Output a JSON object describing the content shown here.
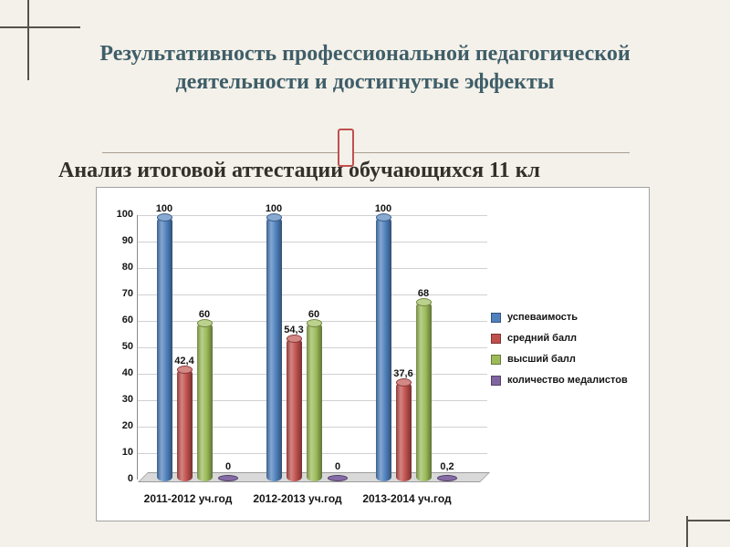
{
  "slide": {
    "title": "Результативность профессиональной педагогической деятельности и достигнутые эффекты",
    "subtitle": "Анализ итоговой аттестации обучающихся 11 кл",
    "title_color": "#3f5e68",
    "accent_color": "#c0504d",
    "background_color": "#f4f1ea"
  },
  "chart_data": {
    "type": "bar",
    "style": "3d-cylinder",
    "title": "",
    "categories": [
      "2011-2012 уч.год",
      "2012-2013 уч.год",
      "2013-2014 уч.год"
    ],
    "series": [
      {
        "name": "успеваимость",
        "color": "#4f81bd",
        "values": [
          100,
          100,
          100
        ],
        "labels": [
          "100",
          "100",
          "100"
        ]
      },
      {
        "name": "средний балл",
        "color": "#c0504d",
        "values": [
          42.4,
          54.3,
          37.6
        ],
        "labels": [
          "42,4",
          "54,3",
          "37,6"
        ]
      },
      {
        "name": "высший балл",
        "color": "#9bbb59",
        "values": [
          60,
          60,
          68
        ],
        "labels": [
          "60",
          "60",
          "68"
        ]
      },
      {
        "name": "количество медалистов",
        "color": "#8064a2",
        "values": [
          0,
          0,
          0.2
        ],
        "labels": [
          "0",
          "0",
          "0,2"
        ]
      }
    ],
    "ylim": [
      0,
      100
    ],
    "ytick_step": 10,
    "yticks": [
      "0",
      "10",
      "20",
      "30",
      "40",
      "50",
      "60",
      "70",
      "80",
      "90",
      "100"
    ],
    "grid": true,
    "legend_position": "right"
  }
}
